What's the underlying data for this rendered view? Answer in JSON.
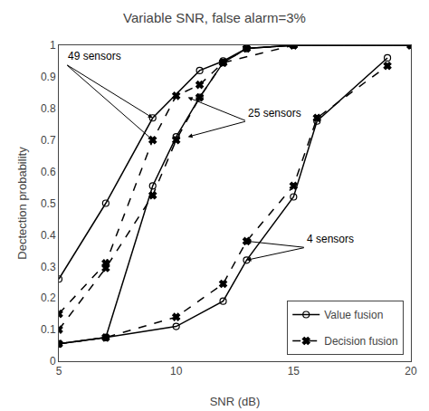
{
  "chart_data": {
    "type": "line",
    "title": "Variable SNR, false alarm=3%",
    "xlabel": "SNR (dB)",
    "ylabel": "Dectection probability",
    "xlim": [
      5,
      20
    ],
    "ylim": [
      0,
      1.0
    ],
    "xticks": [
      5,
      10,
      15,
      20
    ],
    "yticks": [
      0,
      0.1,
      0.2,
      0.3,
      0.4,
      0.5,
      0.6,
      0.7,
      0.8,
      0.9,
      1.0
    ],
    "grid": false,
    "legend": "lower right",
    "series": [
      {
        "name": "Value fusion",
        "color": "#000000",
        "marker": "circle-open",
        "line_style": "solid",
        "x": [
          5,
          7,
          9,
          11,
          12,
          13,
          15,
          20
        ],
        "values": [
          0.26,
          0.5,
          0.77,
          0.92,
          0.95,
          0.99,
          1.0,
          1.0
        ]
      },
      {
        "name": "Decision fusion",
        "color": "#000000",
        "marker": "x",
        "line_style": "dash",
        "x": [
          5,
          7,
          9,
          10,
          11,
          12,
          15,
          20
        ],
        "values": [
          0.15,
          0.31,
          0.7,
          0.84,
          0.875,
          0.945,
          1.0,
          1.0
        ]
      },
      {
        "name": "Value fusion",
        "color": "#000000",
        "marker": "circle-open",
        "line_style": "solid",
        "x": [
          5,
          7,
          9,
          10,
          11,
          12,
          13,
          15,
          20
        ],
        "values": [
          0.055,
          0.075,
          0.555,
          0.71,
          0.835,
          0.945,
          0.99,
          1.0,
          1.0
        ]
      },
      {
        "name": "Decision fusion",
        "color": "#000000",
        "marker": "x",
        "line_style": "dash",
        "x": [
          5,
          7,
          9,
          10,
          11,
          12,
          13,
          15,
          20
        ],
        "values": [
          0.1,
          0.295,
          0.525,
          0.7,
          0.835,
          0.945,
          0.99,
          1.0,
          1.0
        ]
      },
      {
        "name": "Value fusion",
        "color": "#000000",
        "marker": "circle-open",
        "line_style": "solid",
        "x": [
          5,
          7,
          10,
          12,
          13,
          15,
          16,
          19
        ],
        "values": [
          0.055,
          0.075,
          0.11,
          0.19,
          0.32,
          0.52,
          0.76,
          0.96
        ]
      },
      {
        "name": "Decision fusion",
        "color": "#000000",
        "marker": "x",
        "line_style": "dash",
        "x": [
          5,
          7,
          10,
          12,
          13,
          15,
          16,
          19
        ],
        "values": [
          0.055,
          0.075,
          0.14,
          0.245,
          0.38,
          0.555,
          0.77,
          0.935
        ]
      }
    ],
    "annotations": [
      {
        "text": "49 sensors",
        "x": 5.3,
        "y": 0.94,
        "arrows": [
          {
            "x": 9.0,
            "y": 0.77
          },
          {
            "x": 9.0,
            "y": 0.7
          }
        ]
      },
      {
        "text": "25 sensors",
        "x": 13.0,
        "y": 0.76,
        "arrows": [
          {
            "x": 10.5,
            "y": 0.71
          },
          {
            "x": 10.5,
            "y": 0.835
          }
        ]
      },
      {
        "text": "4 sensors",
        "x": 15.5,
        "y": 0.36,
        "arrows": [
          {
            "x": 13.0,
            "y": 0.32
          },
          {
            "x": 13.0,
            "y": 0.38
          }
        ]
      }
    ]
  }
}
